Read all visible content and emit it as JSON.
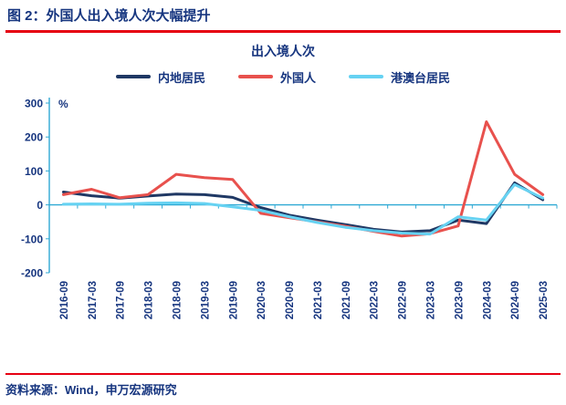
{
  "header": {
    "title": "图 2：外国人出入境人次大幅提升"
  },
  "chart": {
    "title": "出入境人次",
    "text_color": "#16357f",
    "axis_color": "#2fa9d4",
    "rule_color": "#e60012"
  },
  "legend": [
    {
      "label": "内地居民",
      "color": "#1f3864"
    },
    {
      "label": "外国人",
      "color": "#e8514d"
    },
    {
      "label": "港澳台居民",
      "color": "#66d2f2"
    }
  ],
  "footer": {
    "source": "资料来源：Wind，申万宏源研究"
  },
  "chart_data": {
    "type": "line",
    "title": "出入境人次",
    "xlabel": "",
    "ylabel": "%",
    "ylim": [
      -200,
      300
    ],
    "yticks": [
      300,
      200,
      100,
      0,
      -100,
      -200
    ],
    "grid": false,
    "legend_position": "top",
    "categories": [
      "2016-09",
      "2017-03",
      "2017-09",
      "2018-03",
      "2018-09",
      "2019-03",
      "2019-09",
      "2020-03",
      "2020-09",
      "2021-03",
      "2021-09",
      "2022-03",
      "2022-09",
      "2023-03",
      "2023-09",
      "2024-03",
      "2024-09",
      "2025-03"
    ],
    "series": [
      {
        "name": "内地居民",
        "key": "mainland",
        "color": "#1f3864",
        "values": [
          38,
          27,
          20,
          26,
          32,
          30,
          22,
          -8,
          -30,
          -45,
          -58,
          -72,
          -80,
          -76,
          -45,
          -55,
          65,
          15
        ]
      },
      {
        "name": "外国人",
        "key": "foreigners",
        "color": "#e8514d",
        "values": [
          30,
          46,
          21,
          30,
          90,
          80,
          75,
          -25,
          -38,
          -50,
          -63,
          -78,
          -92,
          -85,
          -62,
          245,
          90,
          30
        ]
      },
      {
        "name": "港澳台居民",
        "key": "hmt",
        "color": "#66d2f2",
        "values": [
          2,
          3,
          2,
          5,
          6,
          4,
          -6,
          -16,
          -35,
          -52,
          -66,
          -76,
          -83,
          -86,
          -35,
          -45,
          60,
          20
        ]
      }
    ]
  }
}
